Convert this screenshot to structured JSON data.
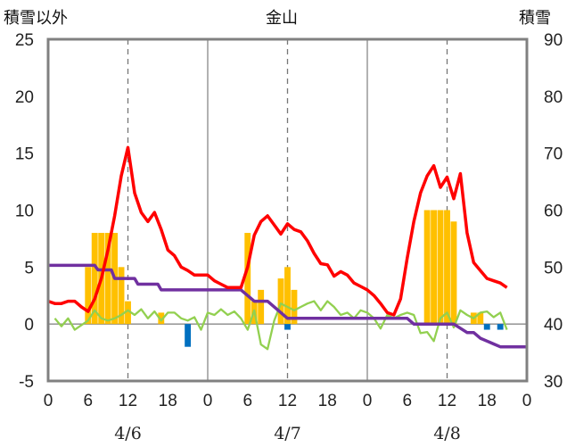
{
  "chart_data": {
    "type": "line",
    "title": "金山",
    "left_axis_label": "積雪以外",
    "right_axis_label": "積雪",
    "ylim_left": [
      -5,
      25
    ],
    "yticks_left": [
      "25",
      "20",
      "15",
      "10",
      "5",
      "0",
      "-5"
    ],
    "ylim_right": [
      30,
      90
    ],
    "yticks_right": [
      "90",
      "80",
      "70",
      "60",
      "50",
      "40",
      "30"
    ],
    "x_hour_ticks": [
      "0",
      "6",
      "12",
      "18",
      "0",
      "6",
      "12",
      "18",
      "0",
      "6",
      "12",
      "18",
      "0"
    ],
    "day_labels": [
      "4/6",
      "4/7",
      "4/8"
    ],
    "x_range_hours": [
      0,
      72
    ],
    "grid": "dashed vertical at 12h, solid vertical at day boundaries",
    "colors": {
      "red_line": "#ff0000",
      "green_line": "#92d050",
      "purple_line": "#7030a0",
      "orange_bars": "#ffc000",
      "blue_bars": "#0070c0"
    },
    "orange_bars": [
      [
        6,
        5
      ],
      [
        7,
        8
      ],
      [
        8,
        8
      ],
      [
        9,
        8
      ],
      [
        10,
        8
      ],
      [
        11,
        5
      ],
      [
        12,
        2
      ],
      [
        17,
        1
      ],
      [
        30,
        8
      ],
      [
        31,
        2
      ],
      [
        32,
        3
      ],
      [
        35,
        4
      ],
      [
        36,
        5
      ],
      [
        37,
        3
      ],
      [
        57,
        10
      ],
      [
        58,
        10
      ],
      [
        59,
        10
      ],
      [
        60,
        10
      ],
      [
        61,
        9
      ],
      [
        64,
        1
      ],
      [
        65,
        1
      ]
    ],
    "blue_bars": [
      [
        21,
        -2
      ],
      [
        36,
        -0.5
      ],
      [
        66,
        -0.5
      ],
      [
        68,
        -0.5
      ]
    ],
    "red_line": [
      [
        0,
        2
      ],
      [
        1,
        1.8
      ],
      [
        2,
        1.8
      ],
      [
        3,
        2
      ],
      [
        4,
        2
      ],
      [
        5,
        1.5
      ],
      [
        6,
        1.1
      ],
      [
        7,
        2.2
      ],
      [
        8,
        4
      ],
      [
        9,
        6.5
      ],
      [
        10,
        9.5
      ],
      [
        11,
        13
      ],
      [
        12,
        15.5
      ],
      [
        13,
        11.5
      ],
      [
        14,
        9.8
      ],
      [
        15,
        9
      ],
      [
        16,
        9.8
      ],
      [
        17,
        8.3
      ],
      [
        18,
        6.5
      ],
      [
        19,
        6
      ],
      [
        20,
        5
      ],
      [
        21,
        4.7
      ],
      [
        22,
        4.3
      ],
      [
        23,
        4.3
      ],
      [
        24,
        4.3
      ],
      [
        25,
        3.8
      ],
      [
        26,
        3.5
      ],
      [
        27,
        3.2
      ],
      [
        28,
        3.2
      ],
      [
        29,
        3.2
      ],
      [
        30,
        5
      ],
      [
        31,
        7.8
      ],
      [
        32,
        9
      ],
      [
        33,
        9.5
      ],
      [
        34,
        8.7
      ],
      [
        35,
        7.9
      ],
      [
        36,
        8.8
      ],
      [
        37,
        8.3
      ],
      [
        38,
        8.1
      ],
      [
        39,
        7.3
      ],
      [
        40,
        6.2
      ],
      [
        41,
        5.3
      ],
      [
        42,
        5.2
      ],
      [
        43,
        4.2
      ],
      [
        44,
        4.6
      ],
      [
        45,
        4.3
      ],
      [
        46,
        3.6
      ],
      [
        47,
        3.3
      ],
      [
        48,
        3
      ],
      [
        49,
        2.5
      ],
      [
        50,
        1.8
      ],
      [
        51,
        1
      ],
      [
        52,
        0.8
      ],
      [
        53,
        2.2
      ],
      [
        54,
        5.8
      ],
      [
        55,
        9
      ],
      [
        56,
        11.5
      ],
      [
        57,
        13
      ],
      [
        58,
        13.9
      ],
      [
        59,
        12
      ],
      [
        60,
        12.9
      ],
      [
        61,
        11
      ],
      [
        62,
        13.2
      ],
      [
        63,
        8
      ],
      [
        64,
        5.4
      ],
      [
        65,
        4.7
      ],
      [
        66,
        4
      ],
      [
        67,
        3.8
      ],
      [
        68,
        3.6
      ],
      [
        69,
        3.2
      ]
    ],
    "green_line": [
      [
        1,
        0.5
      ],
      [
        2,
        -0.2
      ],
      [
        3,
        0.5
      ],
      [
        4,
        -0.5
      ],
      [
        6,
        0.3
      ],
      [
        7,
        1.2
      ],
      [
        8,
        0.5
      ],
      [
        9,
        0.3
      ],
      [
        10,
        0.5
      ],
      [
        11,
        0.8
      ],
      [
        12,
        1.2
      ],
      [
        13,
        0.8
      ],
      [
        14,
        1.3
      ],
      [
        15,
        0.5
      ],
      [
        16,
        1.1
      ],
      [
        17,
        0.3
      ],
      [
        18,
        1
      ],
      [
        19,
        1
      ],
      [
        20,
        0.5
      ],
      [
        21,
        0.3
      ],
      [
        22,
        0.6
      ],
      [
        23,
        -0.5
      ],
      [
        24,
        1
      ],
      [
        25,
        0.8
      ],
      [
        26,
        1.3
      ],
      [
        27,
        0.8
      ],
      [
        28,
        1.1
      ],
      [
        29,
        0.5
      ],
      [
        30,
        -0.5
      ],
      [
        31,
        1.2
      ],
      [
        32,
        -1.8
      ],
      [
        33,
        -2.2
      ],
      [
        34,
        0.3
      ],
      [
        35,
        1.8
      ],
      [
        36,
        1.5
      ],
      [
        37,
        1.2
      ],
      [
        38,
        1.5
      ],
      [
        39,
        1.8
      ],
      [
        40,
        2
      ],
      [
        41,
        1.2
      ],
      [
        42,
        2
      ],
      [
        43,
        1.5
      ],
      [
        44,
        0.8
      ],
      [
        45,
        1
      ],
      [
        46,
        0.5
      ],
      [
        47,
        1.2
      ],
      [
        48,
        1
      ],
      [
        49,
        0.5
      ],
      [
        50,
        -0.4
      ],
      [
        51,
        0.8
      ],
      [
        52,
        0.5
      ],
      [
        53,
        0.8
      ],
      [
        54,
        1
      ],
      [
        55,
        0.8
      ],
      [
        56,
        -0.8
      ],
      [
        57,
        -0.7
      ],
      [
        58,
        -1.5
      ],
      [
        59,
        0.5
      ],
      [
        60,
        1
      ],
      [
        61,
        -0.3
      ],
      [
        62,
        1.2
      ],
      [
        63,
        0.8
      ],
      [
        64,
        0.5
      ],
      [
        65,
        1
      ],
      [
        66,
        1.1
      ],
      [
        67,
        0.6
      ],
      [
        68,
        1
      ],
      [
        69,
        -0.5
      ]
    ],
    "purple_line": [
      [
        0,
        50.3
      ],
      [
        7,
        50.3
      ],
      [
        7.5,
        49.5
      ],
      [
        9.5,
        49.5
      ],
      [
        10,
        48
      ],
      [
        13,
        48
      ],
      [
        13.5,
        47
      ],
      [
        16.5,
        47
      ],
      [
        17,
        46
      ],
      [
        29,
        46
      ],
      [
        30,
        45
      ],
      [
        31,
        44
      ],
      [
        33,
        44
      ],
      [
        36,
        41
      ],
      [
        40,
        41
      ],
      [
        54,
        41
      ],
      [
        55,
        40
      ],
      [
        61,
        40
      ],
      [
        63,
        38.5
      ],
      [
        64,
        38.5
      ],
      [
        65,
        37.5
      ],
      [
        66,
        37
      ],
      [
        67,
        36.5
      ],
      [
        68,
        36
      ],
      [
        72,
        36
      ]
    ]
  }
}
